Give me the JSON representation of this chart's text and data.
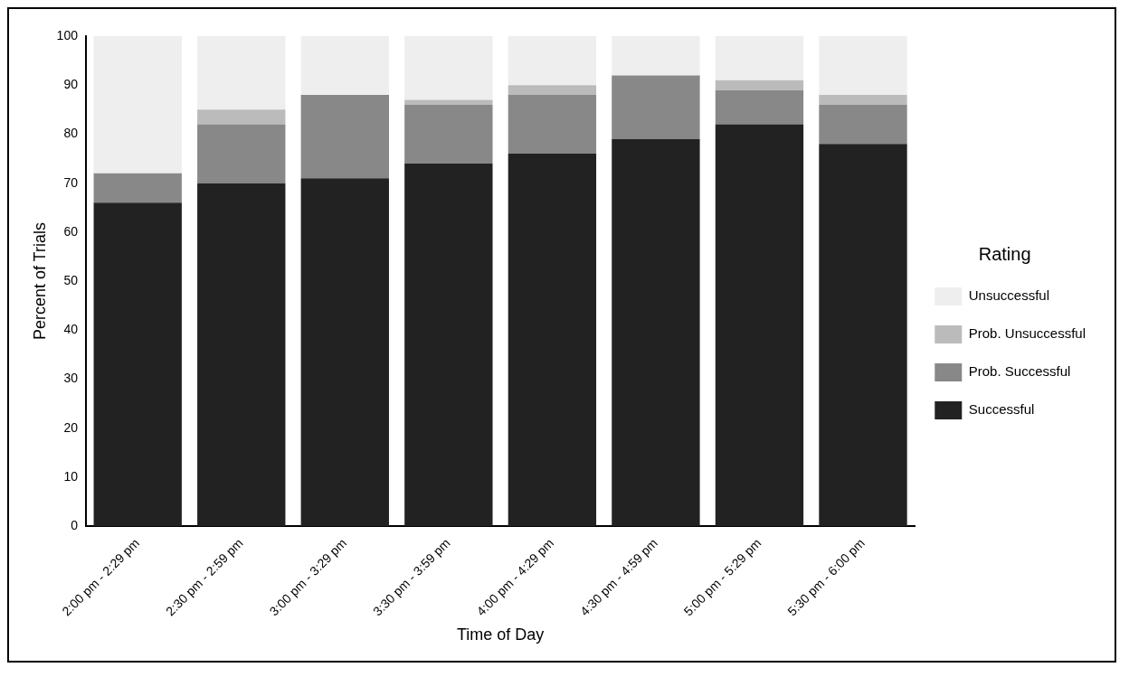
{
  "chart_data": {
    "type": "bar",
    "stacked": true,
    "xlabel": "Time of Day",
    "ylabel": "Percent of Trials",
    "legend_title": "Rating",
    "legend": "right",
    "grid": false,
    "categories": [
      "2:00 pm - 2:29 pm",
      "2:30 pm - 2:59 pm",
      "3:00 pm - 3:29 pm",
      "3:30 pm - 3:59 pm",
      "4:00 pm - 4:29 pm",
      "4:30 pm - 4:59 pm",
      "5:00 pm - 5:29 pm",
      "5:30 pm - 6:00 pm"
    ],
    "ylim": [
      0,
      100
    ],
    "yticks": [
      0,
      10,
      20,
      30,
      40,
      50,
      60,
      70,
      80,
      90,
      100
    ],
    "series": [
      {
        "name": "Successful",
        "color": "#222222",
        "values": [
          66,
          70,
          71,
          74,
          76,
          79,
          82,
          78
        ]
      },
      {
        "name": "Prob. Successful",
        "color": "#888888",
        "values": [
          6,
          12,
          17,
          12,
          12,
          13,
          7,
          8
        ]
      },
      {
        "name": "Prob. Unsuccessful",
        "color": "#bbbbbb",
        "values": [
          0,
          3,
          0,
          1,
          2,
          0,
          2,
          2
        ]
      },
      {
        "name": "Unsuccessful",
        "color": "#eeeeee",
        "values": [
          28,
          15,
          12,
          13,
          10,
          8,
          9,
          12
        ]
      }
    ]
  }
}
